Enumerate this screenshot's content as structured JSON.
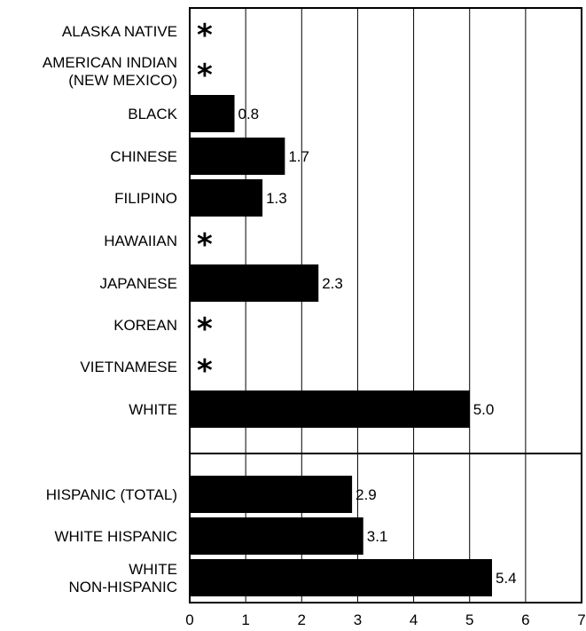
{
  "chart_data": {
    "type": "bar",
    "orientation": "horizontal",
    "title": "",
    "xlabel": "",
    "ylabel": "",
    "xlim": [
      0,
      7
    ],
    "xticks": [
      0,
      1,
      2,
      3,
      4,
      5,
      6,
      7
    ],
    "grid": "vertical",
    "legend": "none",
    "bar_color": "#000000",
    "missing_marker": "*",
    "groups": [
      {
        "categories": [
          [
            "ALASKA NATIVE"
          ],
          [
            "AMERICAN INDIAN",
            "(NEW MEXICO)"
          ],
          [
            "BLACK"
          ],
          [
            "CHINESE"
          ],
          [
            "FILIPINO"
          ],
          [
            "HAWAIIAN"
          ],
          [
            "JAPANESE"
          ],
          [
            "KOREAN"
          ],
          [
            "VIETNAMESE"
          ],
          [
            "WHITE"
          ]
        ],
        "values": [
          null,
          null,
          0.8,
          1.7,
          1.3,
          null,
          2.3,
          null,
          null,
          5.0
        ],
        "value_labels": [
          "",
          "",
          "0.8",
          "1.7",
          "1.3",
          "",
          "2.3",
          "",
          "",
          "5.0"
        ]
      },
      {
        "categories": [
          [
            "HISPANIC (TOTAL)"
          ],
          [
            "WHITE HISPANIC"
          ],
          [
            "WHITE",
            "NON-HISPANIC"
          ]
        ],
        "values": [
          2.9,
          3.1,
          5.4
        ],
        "value_labels": [
          "2.9",
          "3.1",
          "5.4"
        ]
      }
    ]
  }
}
